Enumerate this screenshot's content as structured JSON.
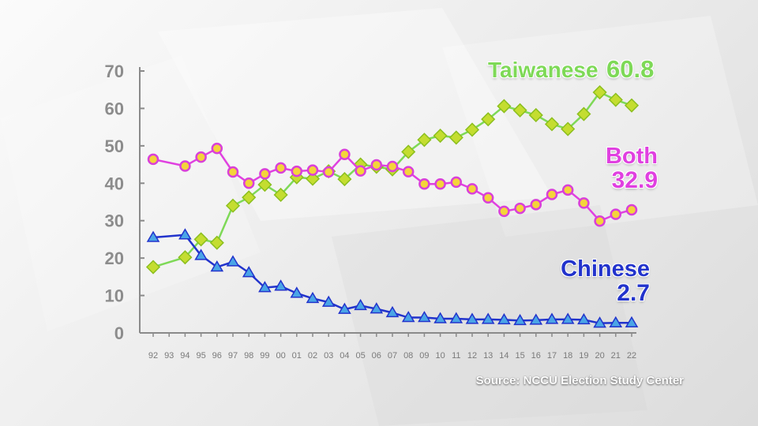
{
  "chart_data": {
    "type": "line",
    "x": [
      "92",
      "93",
      "94",
      "95",
      "96",
      "97",
      "98",
      "99",
      "00",
      "01",
      "02",
      "03",
      "04",
      "05",
      "06",
      "07",
      "08",
      "09",
      "10",
      "11",
      "12",
      "13",
      "14",
      "15",
      "16",
      "17",
      "18",
      "19",
      "20",
      "21",
      "22"
    ],
    "ylim": [
      0,
      70
    ],
    "yticks": [
      0,
      10,
      20,
      30,
      40,
      50,
      60,
      70
    ],
    "grid": false,
    "series": [
      {
        "name": "Taiwanese",
        "end_label": "60.8",
        "color": "#7ed957",
        "marker": "diamond",
        "points": [
          [
            "92",
            17.6
          ],
          [
            "94",
            20.2
          ],
          [
            "95",
            25.0
          ],
          [
            "96",
            24.1
          ],
          [
            "97",
            34.0
          ],
          [
            "98",
            36.2
          ],
          [
            "99",
            39.6
          ],
          [
            "00",
            36.9
          ],
          [
            "01",
            41.6
          ],
          [
            "02",
            41.2
          ],
          [
            "03",
            43.2
          ],
          [
            "04",
            41.1
          ],
          [
            "05",
            45.0
          ],
          [
            "06",
            44.4
          ],
          [
            "07",
            43.7
          ],
          [
            "08",
            48.4
          ],
          [
            "09",
            51.6
          ],
          [
            "10",
            52.7
          ],
          [
            "11",
            52.2
          ],
          [
            "12",
            54.3
          ],
          [
            "13",
            57.1
          ],
          [
            "14",
            60.6
          ],
          [
            "15",
            59.5
          ],
          [
            "16",
            58.2
          ],
          [
            "17",
            55.8
          ],
          [
            "18",
            54.5
          ],
          [
            "19",
            58.5
          ],
          [
            "20",
            64.3
          ],
          [
            "21",
            62.3
          ],
          [
            "22",
            60.8
          ]
        ]
      },
      {
        "name": "Both",
        "end_label": "32.9",
        "color": "#e040e0",
        "marker": "circle",
        "points": [
          [
            "92",
            46.4
          ],
          [
            "94",
            44.6
          ],
          [
            "95",
            47.0
          ],
          [
            "96",
            49.3
          ],
          [
            "97",
            43.0
          ],
          [
            "98",
            40.0
          ],
          [
            "99",
            42.5
          ],
          [
            "00",
            44.1
          ],
          [
            "01",
            43.2
          ],
          [
            "02",
            43.5
          ],
          [
            "03",
            43.0
          ],
          [
            "04",
            47.7
          ],
          [
            "05",
            43.3
          ],
          [
            "06",
            44.9
          ],
          [
            "07",
            44.5
          ],
          [
            "08",
            43.1
          ],
          [
            "09",
            39.8
          ],
          [
            "10",
            39.8
          ],
          [
            "11",
            40.3
          ],
          [
            "12",
            38.5
          ],
          [
            "13",
            36.1
          ],
          [
            "14",
            32.5
          ],
          [
            "15",
            33.3
          ],
          [
            "16",
            34.3
          ],
          [
            "17",
            37.0
          ],
          [
            "18",
            38.2
          ],
          [
            "19",
            34.7
          ],
          [
            "20",
            29.9
          ],
          [
            "21",
            31.7
          ],
          [
            "22",
            32.9
          ]
        ]
      },
      {
        "name": "Chinese",
        "end_label": "2.7",
        "color": "#2233cc",
        "marker": "triangle",
        "points": [
          [
            "92",
            25.5
          ],
          [
            "94",
            26.2
          ],
          [
            "95",
            20.7
          ],
          [
            "96",
            17.6
          ],
          [
            "97",
            19.0
          ],
          [
            "98",
            16.1
          ],
          [
            "99",
            12.1
          ],
          [
            "00",
            12.5
          ],
          [
            "01",
            10.6
          ],
          [
            "02",
            9.2
          ],
          [
            "03",
            8.2
          ],
          [
            "04",
            6.3
          ],
          [
            "05",
            7.3
          ],
          [
            "06",
            6.4
          ],
          [
            "07",
            5.4
          ],
          [
            "08",
            4.1
          ],
          [
            "09",
            4.1
          ],
          [
            "10",
            3.8
          ],
          [
            "11",
            3.8
          ],
          [
            "12",
            3.6
          ],
          [
            "13",
            3.6
          ],
          [
            "14",
            3.5
          ],
          [
            "15",
            3.3
          ],
          [
            "16",
            3.4
          ],
          [
            "17",
            3.6
          ],
          [
            "18",
            3.6
          ],
          [
            "19",
            3.5
          ],
          [
            "20",
            2.6
          ],
          [
            "21",
            2.7
          ],
          [
            "22",
            2.7
          ]
        ]
      }
    ]
  },
  "source_text": "Source: NCCU Election Study Center"
}
